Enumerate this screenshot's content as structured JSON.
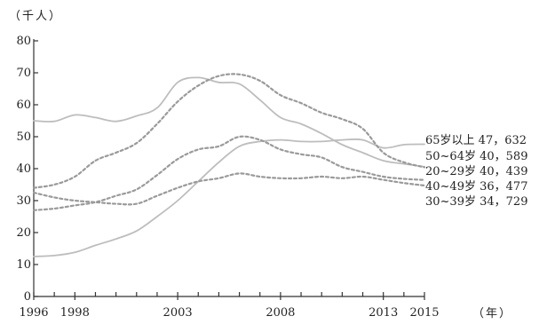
{
  "chart_data": {
    "type": "line",
    "ylabel": "（千人）",
    "xlabel": "（年）",
    "x": [
      1996,
      1997,
      1998,
      1999,
      2000,
      2001,
      2002,
      2003,
      2004,
      2005,
      2006,
      2007,
      2008,
      2009,
      2010,
      2011,
      2012,
      2013,
      2014,
      2015
    ],
    "x_tick_labels": [
      {
        "value": 1996,
        "label": "1996"
      },
      {
        "value": 1998,
        "label": "1998"
      },
      {
        "value": 2003,
        "label": "2003"
      },
      {
        "value": 2008,
        "label": "2008"
      },
      {
        "value": 2013,
        "label": "2013"
      },
      {
        "value": 2015,
        "label": "2015"
      }
    ],
    "xlim": [
      1996,
      2015
    ],
    "ylim": [
      0,
      80
    ],
    "y_ticks": [
      0,
      10,
      20,
      30,
      40,
      50,
      60,
      70,
      80
    ],
    "series": [
      {
        "label": "65岁以上 47，632",
        "color": "#bdbdbd",
        "style": "solid",
        "values": [
          12.5,
          12.8,
          13.8,
          16.0,
          18.0,
          20.5,
          25.0,
          30.0,
          36.0,
          42.0,
          47.0,
          48.5,
          49.0,
          48.5,
          48.5,
          49.0,
          49.0,
          46.5,
          47.5,
          47.632
        ]
      },
      {
        "label": "50~64岁 40，589",
        "color": "#bdbdbd",
        "style": "solid",
        "values": [
          55.0,
          54.8,
          56.8,
          56.0,
          54.8,
          56.5,
          59.0,
          67.0,
          68.5,
          67.0,
          66.5,
          61.5,
          56.0,
          54.0,
          51.0,
          47.5,
          45.0,
          42.5,
          41.5,
          40.589
        ]
      },
      {
        "label": "20~29岁 40，439",
        "color": "#9a9a9a",
        "style": "dashed",
        "values": [
          34.0,
          35.0,
          37.5,
          42.5,
          45.0,
          48.0,
          54.0,
          61.0,
          66.0,
          69.0,
          69.5,
          67.5,
          63.0,
          60.5,
          57.5,
          55.5,
          52.5,
          45.0,
          42.0,
          40.439
        ]
      },
      {
        "label": "40~49岁 36，477",
        "color": "#9a9a9a",
        "style": "dashed",
        "values": [
          27.0,
          27.5,
          28.5,
          29.5,
          31.5,
          33.5,
          38.0,
          43.0,
          46.0,
          47.0,
          50.0,
          49.0,
          46.0,
          44.5,
          43.5,
          40.5,
          39.0,
          37.5,
          36.8,
          36.477
        ]
      },
      {
        "label": "30~39岁 34，729",
        "color": "#9a9a9a",
        "style": "dashed",
        "values": [
          32.5,
          31.0,
          30.0,
          29.5,
          29.0,
          29.0,
          31.5,
          34.0,
          36.0,
          37.0,
          38.5,
          37.5,
          37.0,
          37.0,
          37.5,
          37.0,
          37.5,
          36.5,
          35.5,
          34.729
        ]
      }
    ],
    "legend": "right-end labels",
    "grid": false
  }
}
